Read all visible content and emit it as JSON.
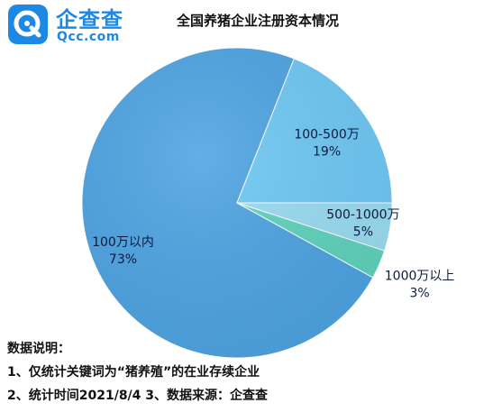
{
  "brand": {
    "name_cn": "企查查",
    "name_en": "Qcc.com",
    "color": "#1e88e5"
  },
  "chart_data": {
    "type": "pie",
    "title": "全国养猪企业注册资本情况",
    "categories": [
      "100万以内",
      "100-500万",
      "500-1000万",
      "1000万以上"
    ],
    "values": [
      73,
      19,
      5,
      3
    ],
    "value_labels": [
      "73%",
      "19%",
      "5%",
      "3%"
    ],
    "colors": [
      "#4da3e2",
      "#6ec8f5",
      "#9adcf2",
      "#5fd3bd"
    ],
    "start_angle_deg": 0
  },
  "notes": {
    "heading": "数据说明：",
    "line1": "1、仅统计关键词为“猪养殖”的在业存续企业",
    "line2": "2、统计时间2021/8/4   3、数据来源：企查查"
  }
}
